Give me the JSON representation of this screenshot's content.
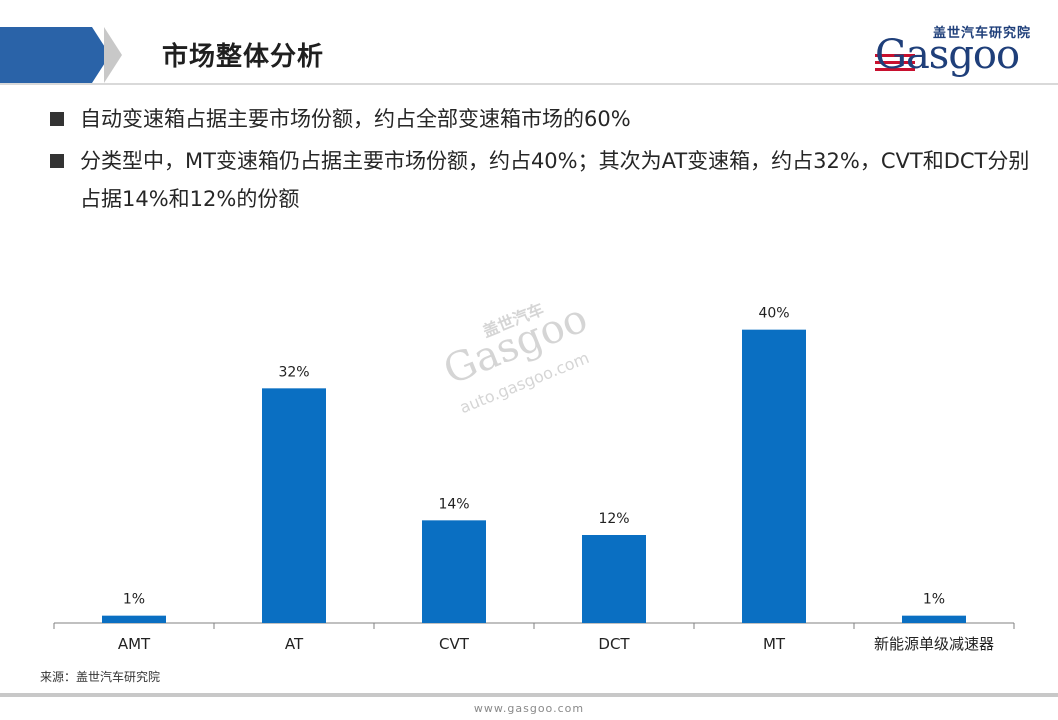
{
  "header": {
    "title": "市场整体分析",
    "logo_cn": "盖世汽车研究院",
    "logo_word": "Gasgoo"
  },
  "bullets": [
    "自动变速箱占据主要市场份额，约占全部变速箱市场的60%",
    "分类型中，MT变速箱仍占据主要市场份额，约占40%；其次为AT变速箱，约占32%，CVT和DCT分别占据14%和12%的份额"
  ],
  "watermark": {
    "cn": "盖世汽车",
    "word": "Gasgoo",
    "url": "auto.gasgoo.com"
  },
  "chart_data": {
    "type": "bar",
    "categories": [
      "AMT",
      "AT",
      "CVT",
      "DCT",
      "MT",
      "新能源单级减速器"
    ],
    "values": [
      1,
      32,
      14,
      12,
      40,
      1
    ],
    "data_labels": [
      "1%",
      "32%",
      "14%",
      "12%",
      "40%",
      "1%"
    ],
    "value_unit": "%",
    "ylim": [
      0,
      45
    ],
    "grid": false,
    "legend": "none",
    "colors": {
      "bar": "#0a6fc2",
      "axis": "#808080"
    }
  },
  "source": "来源：盖世汽车研究院",
  "footer": {
    "url": "www.gasgoo.com"
  },
  "colors": {
    "accent": "#2a63a8",
    "chevron": "#c8c8c8",
    "logo": "#1f3f7a"
  }
}
